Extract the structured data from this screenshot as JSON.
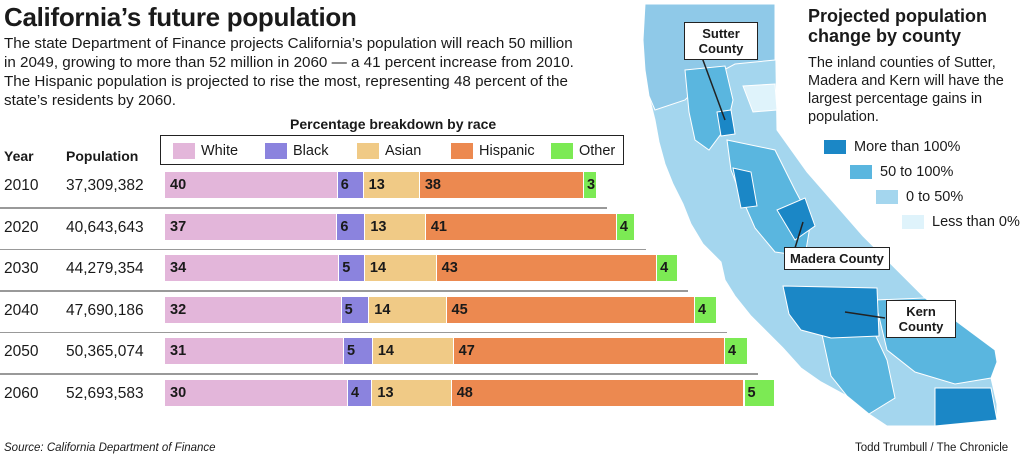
{
  "header": {
    "title": "California’s future population",
    "intro": "The state Department of Finance projects California’s population will reach 50 million in 2049, growing to more than 52 million in 2060 — a 41 percent increase from 2010. The Hispanic population is projected to rise the most, representing 48 percent of the state’s residents by 2060."
  },
  "chart_data": {
    "type": "bar",
    "subtype": "stacked-horizontal",
    "title": "Percentage breakdown by race",
    "column_headers": [
      "Year",
      "Population"
    ],
    "categories": [
      "2010",
      "2020",
      "2030",
      "2040",
      "2050",
      "2060"
    ],
    "population": [
      "37,309,382",
      "40,643,643",
      "44,279,354",
      "47,690,186",
      "50,365,074",
      "52,693,583"
    ],
    "population_values": [
      37309382,
      40643643,
      44279354,
      47690186,
      50365074,
      52693583
    ],
    "legend_position": "top",
    "series": [
      {
        "name": "White",
        "color": "#e3b6da",
        "values": [
          40,
          37,
          34,
          32,
          31,
          30
        ]
      },
      {
        "name": "Black",
        "color": "#8b83de",
        "values": [
          6,
          6,
          5,
          5,
          5,
          4
        ]
      },
      {
        "name": "Asian",
        "color": "#f0ca86",
        "values": [
          13,
          13,
          14,
          14,
          14,
          13
        ]
      },
      {
        "name": "Hispanic",
        "color": "#ec8950",
        "values": [
          38,
          41,
          43,
          45,
          47,
          48
        ]
      },
      {
        "name": "Other",
        "color": "#7cea54",
        "values": [
          3,
          4,
          4,
          4,
          4,
          5
        ]
      }
    ],
    "bar_length_scales_with_population": true
  },
  "map": {
    "title": "Projected population change by county",
    "description": "The inland counties of Sutter, Madera and Kern will have the largest percentage gains in population.",
    "legend": [
      {
        "label": "More than 100%",
        "color": "#1b87c6"
      },
      {
        "label": "50 to 100%",
        "color": "#5ab6df"
      },
      {
        "label": "0 to 50%",
        "color": "#a4d6ee"
      },
      {
        "label": "Less than 0%",
        "color": "#dff3fb"
      }
    ],
    "callouts": {
      "sutter": "Sutter County",
      "madera": "Madera County",
      "kern": "Kern County"
    }
  },
  "footer": {
    "source": "Source: California Department of Finance",
    "credit": "Todd Trumbull / The Chronicle"
  }
}
